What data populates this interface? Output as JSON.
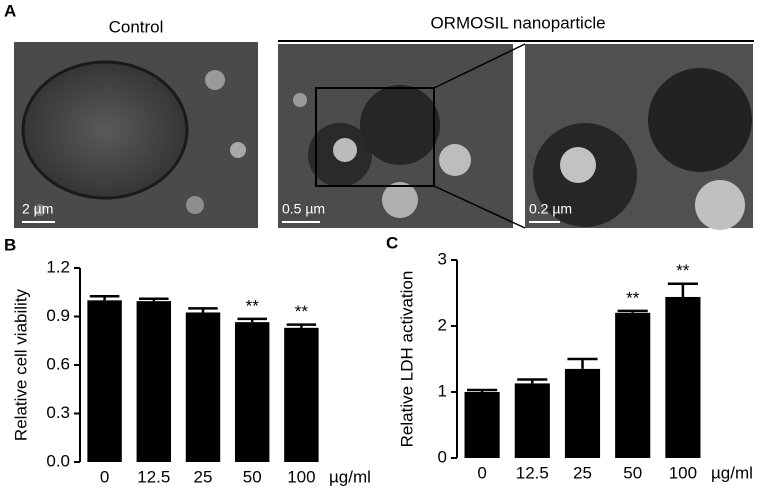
{
  "figure": {
    "panel_labels": [
      "A",
      "B",
      "C"
    ],
    "control_title": "Control",
    "treated_title": "ORMOSIL nanoparticle",
    "scale_bars": [
      "2 µm",
      "0.5 µm",
      "0.2 µm"
    ]
  },
  "chart_data": [
    {
      "type": "bar",
      "ylabel": "Relative cell viability",
      "categories": [
        "0",
        "12.5",
        "25",
        "50",
        "100"
      ],
      "x_unit": "µg/ml",
      "values": [
        1.0,
        0.995,
        0.925,
        0.865,
        0.83
      ],
      "errors": [
        0.025,
        0.015,
        0.025,
        0.02,
        0.02
      ],
      "significance": [
        null,
        null,
        null,
        "**",
        "**"
      ],
      "color": "#000000",
      "ylim": [
        0,
        1.2
      ],
      "yticks": [
        {
          "value": 0,
          "label": "0.0"
        },
        0.3,
        0.6,
        0.9,
        1.2
      ]
    },
    {
      "type": "bar",
      "ylabel": "Relative LDH activation",
      "categories": [
        "0",
        "12.5",
        "25",
        "50",
        "100"
      ],
      "x_unit": "µg/ml",
      "values": [
        1.0,
        1.13,
        1.35,
        2.2,
        2.44
      ],
      "errors": [
        0.03,
        0.06,
        0.15,
        0.03,
        0.2
      ],
      "significance": [
        null,
        null,
        null,
        "**",
        "**"
      ],
      "color": "#000000",
      "ylim": [
        0,
        3
      ],
      "yticks": [
        0,
        1,
        2,
        3
      ]
    }
  ]
}
